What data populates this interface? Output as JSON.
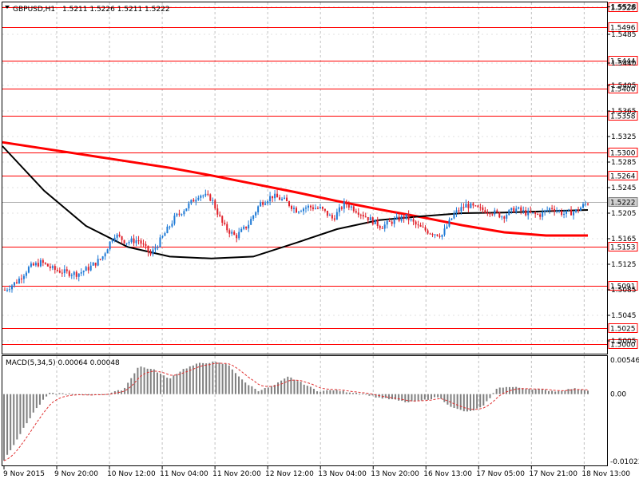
{
  "header": {
    "symbol_label": "GBPUSD,H1",
    "ohlc_values": "1.5211 1.5226 1.5211 1.5222",
    "arrow_icon": "triangle-down-icon"
  },
  "macd": {
    "label": "MACD(5,34,5) 0.00064 0.00048",
    "ticks": [
      "0.00546",
      "0.00",
      "-0.01023"
    ],
    "tick_values": [
      0.00546,
      0.0,
      -0.01023
    ]
  },
  "chart_data": {
    "type": "candlestick",
    "symbol": "GBPUSD",
    "timeframe": "H1",
    "price_ylim": [
      1.4985,
      1.5535
    ],
    "price_axis_ticks": [
      "1.5528",
      "1.5485",
      "1.5440",
      "1.5405",
      "1.5365",
      "1.5325",
      "1.5285",
      "1.5245",
      "1.5205",
      "1.5165",
      "1.5125",
      "1.5085",
      "1.5045",
      "1.5005"
    ],
    "price_axis_tick_values": [
      1.5528,
      1.5485,
      1.544,
      1.5405,
      1.5365,
      1.5325,
      1.5285,
      1.5245,
      1.5205,
      1.5165,
      1.5125,
      1.5085,
      1.5045,
      1.5005
    ],
    "level_lines": [
      "1.5528",
      "1.5496",
      "1.5444",
      "1.5400",
      "1.5358",
      "1.5300",
      "1.5264",
      "1.5153",
      "1.5091",
      "1.5025",
      "1.5000"
    ],
    "level_values": [
      1.5528,
      1.5496,
      1.5444,
      1.54,
      1.5358,
      1.53,
      1.5264,
      1.5153,
      1.5091,
      1.5025,
      1.5
    ],
    "current_price": "1.5222",
    "current_price_value": 1.5222,
    "x_ticks": [
      "9 Nov 2015",
      "9 Nov 20:00",
      "10 Nov 12:00",
      "11 Nov 04:00",
      "11 Nov 20:00",
      "12 Nov 12:00",
      "13 Nov 04:00",
      "13 Nov 20:00",
      "16 Nov 13:00",
      "17 Nov 05:00",
      "17 Nov 21:00",
      "18 Nov 13:00"
    ],
    "close_path": [
      1.5085,
      1.5098,
      1.512,
      1.5128,
      1.5117,
      1.5112,
      1.511,
      1.512,
      1.5135,
      1.5172,
      1.516,
      1.5163,
      1.514,
      1.5168,
      1.5198,
      1.5215,
      1.5235,
      1.5228,
      1.5185,
      1.5168,
      1.5186,
      1.522,
      1.5232,
      1.5225,
      1.521,
      1.5215,
      1.5212,
      1.5196,
      1.5221,
      1.5209,
      1.5196,
      1.5184,
      1.5193,
      1.52,
      1.5184,
      1.5175,
      1.5171,
      1.5204,
      1.5218,
      1.5211,
      1.5208,
      1.52,
      1.5212,
      1.5205,
      1.5202,
      1.5214,
      1.5204,
      1.5208,
      1.5222
    ],
    "series": [
      {
        "name": "",
        "color": "#ff0000",
        "values": [
          1.5316,
          1.5306,
          1.5296,
          1.5286,
          1.5276,
          1.5264,
          1.5251,
          1.5238,
          1.5224,
          1.5211,
          1.5199,
          1.5186,
          1.5175,
          1.517,
          1.517
        ]
      },
      {
        "name": "",
        "color": "#000000",
        "values": [
          1.531,
          1.524,
          1.5185,
          1.5152,
          1.5137,
          1.5134,
          1.5137,
          1.5158,
          1.518,
          1.5194,
          1.52,
          1.5205,
          1.5206,
          1.5208,
          1.521
        ]
      }
    ]
  }
}
